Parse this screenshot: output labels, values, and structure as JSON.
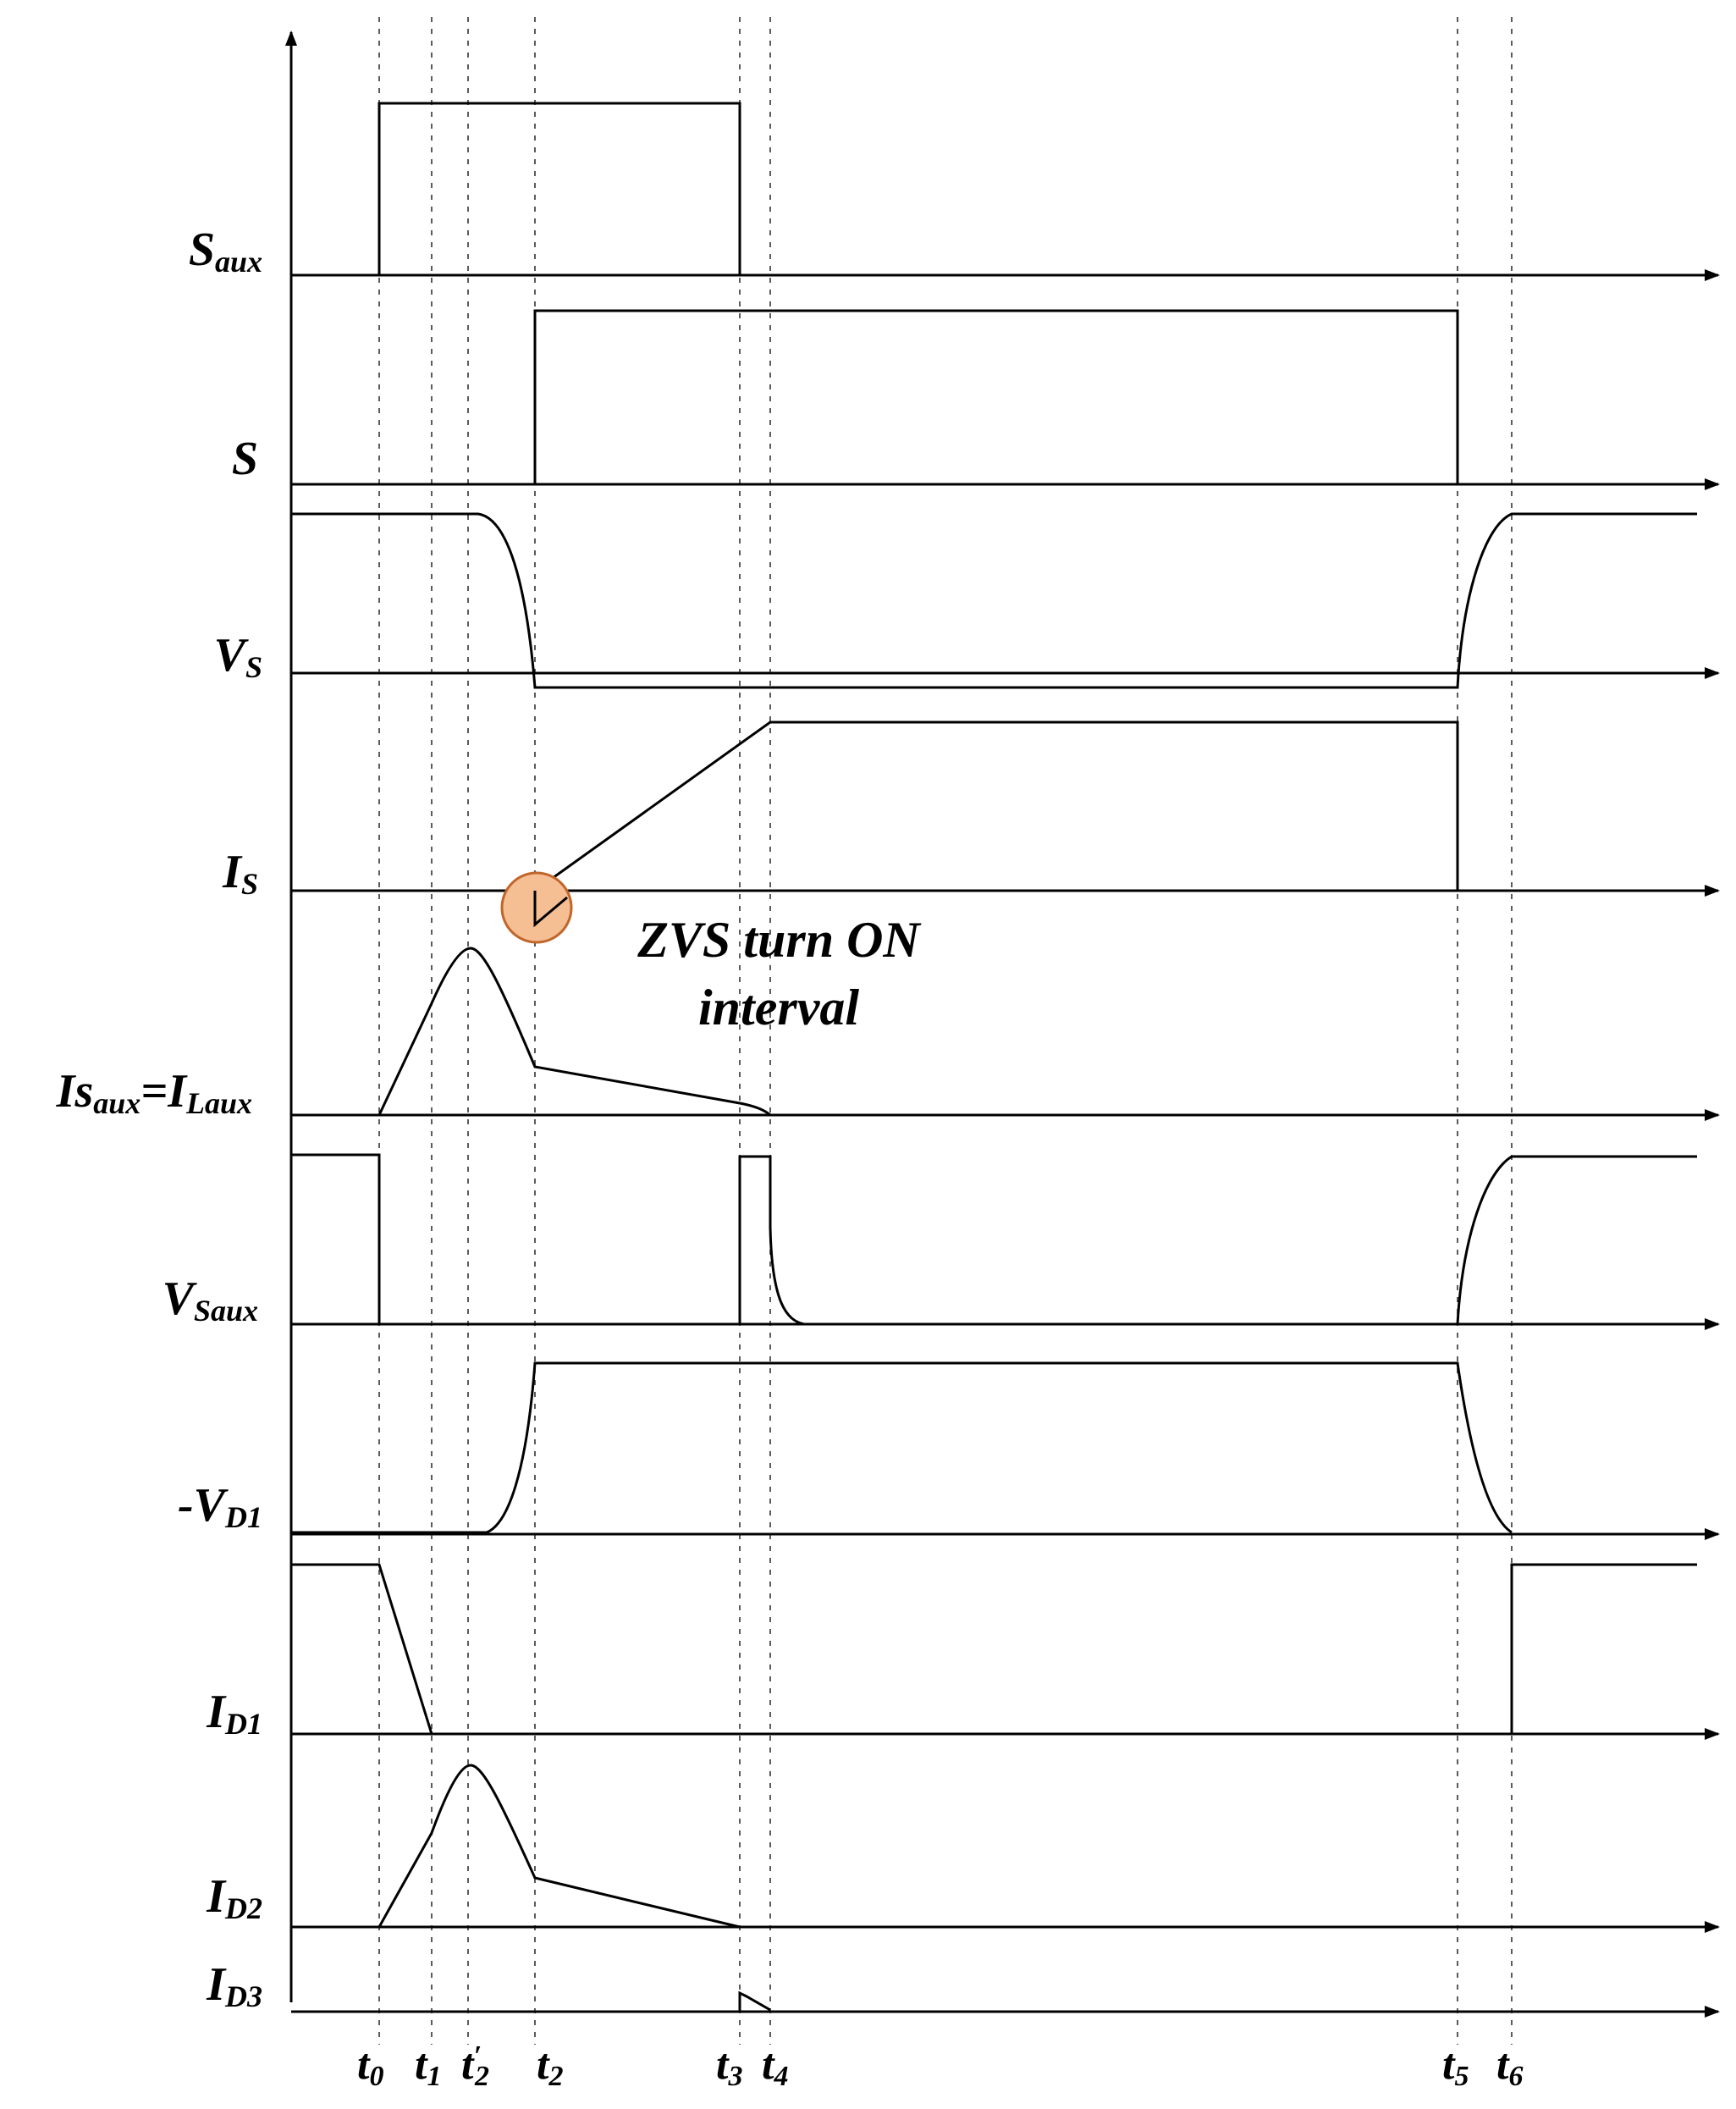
{
  "signals": [
    {
      "id": "saux",
      "main": "S",
      "sub": "aux"
    },
    {
      "id": "s",
      "main": "S",
      "sub": ""
    },
    {
      "id": "vs",
      "main": "V",
      "sub": "S"
    },
    {
      "id": "is",
      "main": "I",
      "sub": "S"
    },
    {
      "id": "isaux",
      "main": "Is",
      "sub": "aux",
      "main2": "=I",
      "sub2": "Laux"
    },
    {
      "id": "vsaux",
      "main": "V",
      "sub": "Saux"
    },
    {
      "id": "vd1",
      "main": "-V",
      "sub": "D1"
    },
    {
      "id": "id1",
      "main": "I",
      "sub": "D1"
    },
    {
      "id": "id2",
      "main": "I",
      "sub": "D2"
    },
    {
      "id": "id3",
      "main": "I",
      "sub": "D3"
    }
  ],
  "time_labels": [
    {
      "main": "t",
      "sub": "0"
    },
    {
      "main": "t",
      "sub": "1"
    },
    {
      "main": "t",
      "sub": "2",
      "prime": "′"
    },
    {
      "main": "t",
      "sub": "2"
    },
    {
      "main": "t",
      "sub": "3"
    },
    {
      "main": "t",
      "sub": "4"
    },
    {
      "main": "t",
      "sub": "5"
    },
    {
      "main": "t",
      "sub": "6"
    }
  ],
  "annotation": {
    "line1": "ZVS turn ON",
    "line2": "interval"
  },
  "colors": {
    "marker_fill": "#F5BE93",
    "marker_stroke": "#C0662B",
    "line": "#000000"
  }
}
